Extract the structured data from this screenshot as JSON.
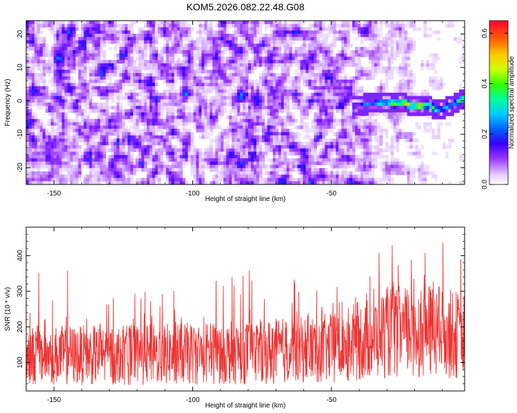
{
  "title": "KOM5.2026.082.22.48.G08",
  "chart_data": [
    {
      "type": "heatmap",
      "name": "spectrogram",
      "xlabel": "Height of straight line (km)",
      "ylabel": "Frequency (Hz)",
      "xlim": [
        -160,
        -2
      ],
      "ylim": [
        -25,
        24
      ],
      "xticks": [
        -150,
        -100,
        -50
      ],
      "yticks": [
        -20,
        -10,
        0,
        10,
        20
      ],
      "colorbar": {
        "label": "Normalized spectral amplitude",
        "range": [
          0.0,
          0.65
        ],
        "ticks": [
          0.0,
          0.2,
          0.4,
          0.6
        ]
      },
      "description_values": {
        "background_level": "0.0-0.15 (random noise across full range)",
        "signal_track": [
          {
            "x": -42,
            "y": -1.5,
            "value": 0.18
          },
          {
            "x": -38,
            "y": -1.0,
            "value": 0.25
          },
          {
            "x": -34,
            "y": -0.8,
            "value": 0.33
          },
          {
            "x": -30,
            "y": -0.5,
            "value": 0.45
          },
          {
            "x": -27,
            "y": -0.8,
            "value": 0.5
          },
          {
            "x": -24,
            "y": -0.5,
            "value": 0.62
          },
          {
            "x": -21,
            "y": -1.5,
            "value": 0.55
          },
          {
            "x": -18,
            "y": -1.5,
            "value": 0.6
          },
          {
            "x": -15,
            "y": -1.0,
            "value": 0.45
          },
          {
            "x": -12,
            "y": -3.0,
            "value": 0.4
          },
          {
            "x": -9,
            "y": -2.0,
            "value": 0.3
          },
          {
            "x": -6,
            "y": -1.0,
            "value": 0.35
          },
          {
            "x": -3,
            "y": 0.5,
            "value": 0.45
          },
          {
            "x": -1,
            "y": 1.0,
            "value": 0.6
          }
        ]
      }
    },
    {
      "type": "line",
      "name": "snr",
      "xlabel": "Height of straight line (km)",
      "ylabel": "SNR (10 * v/v)",
      "xlim": [
        -160,
        -2
      ],
      "ylim": [
        20,
        480
      ],
      "xticks": [
        -150,
        -100,
        -50
      ],
      "yticks": [
        100,
        200,
        300,
        400
      ],
      "series": [
        {
          "name": "SNR",
          "color": "#ee3333",
          "profile": [
            {
              "x": -160,
              "baseline": 120,
              "peak": 330
            },
            {
              "x": -155,
              "baseline": 120,
              "peak": 415
            },
            {
              "x": -130,
              "baseline": 120,
              "peak": 280
            },
            {
              "x": -100,
              "baseline": 125,
              "peak": 330
            },
            {
              "x": -75,
              "baseline": 130,
              "peak": 375
            },
            {
              "x": -50,
              "baseline": 140,
              "peak": 340
            },
            {
              "x": -40,
              "baseline": 160,
              "peak": 370
            },
            {
              "x": -30,
              "baseline": 185,
              "peak": 440
            },
            {
              "x": -17,
              "baseline": 190,
              "peak": 480
            },
            {
              "x": -2,
              "baseline": 175,
              "peak": 425
            }
          ]
        }
      ]
    }
  ]
}
